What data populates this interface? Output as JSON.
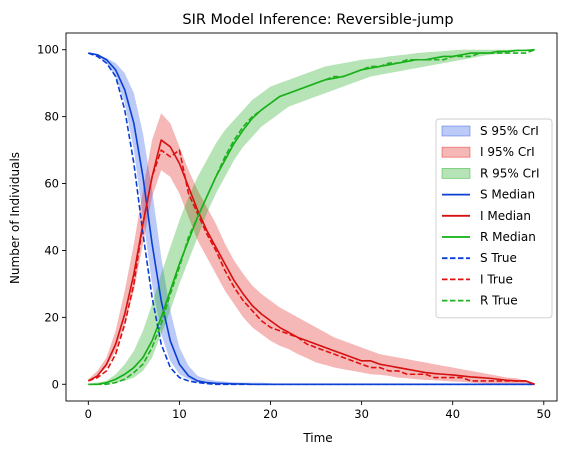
{
  "chart_data": {
    "type": "line",
    "title": "SIR Model Inference: Reversible-jump",
    "xlabel": "Time",
    "ylabel": "Number of Individuals",
    "xlim": [
      -2.45,
      51.45
    ],
    "ylim": [
      -5,
      105
    ],
    "xticks": [
      0,
      10,
      20,
      30,
      40,
      50
    ],
    "yticks": [
      0,
      20,
      40,
      60,
      80,
      100
    ],
    "grid": false,
    "legend_position": "center-right",
    "x": [
      0,
      1,
      2,
      3,
      4,
      5,
      6,
      7,
      8,
      9,
      10,
      11,
      12,
      13,
      14,
      15,
      16,
      17,
      18,
      19,
      20,
      21,
      22,
      23,
      24,
      25,
      26,
      27,
      28,
      29,
      30,
      31,
      32,
      33,
      34,
      35,
      36,
      37,
      38,
      39,
      40,
      41,
      42,
      43,
      44,
      45,
      46,
      47,
      48,
      49
    ],
    "bands": [
      {
        "name": "S 95% CrI",
        "color": "#1f4fe0",
        "lower": [
          99,
          98,
          96,
          92,
          84,
          70,
          50,
          30,
          15,
          7,
          3,
          1.5,
          0.5,
          0.3,
          0.2,
          0,
          0,
          0,
          0,
          0,
          0,
          0,
          0,
          0,
          0,
          0,
          0,
          0,
          0,
          0,
          0,
          0,
          0,
          0,
          0,
          0,
          0,
          0,
          0,
          0,
          0,
          0,
          0,
          0,
          0,
          0,
          0,
          0,
          0,
          0
        ],
        "upper": [
          99,
          98.5,
          97.5,
          96,
          93,
          87,
          75,
          58,
          38,
          22,
          11,
          5.5,
          2.5,
          1.5,
          1,
          0.8,
          0.6,
          0.5,
          0.5,
          0.5,
          0.3,
          0,
          0,
          0,
          0,
          0,
          0,
          0,
          0,
          0,
          0,
          0,
          0,
          0,
          0,
          0,
          0,
          0,
          0,
          0,
          0,
          0,
          0,
          0,
          0,
          0,
          0,
          0,
          0,
          0
        ]
      },
      {
        "name": "I 95% CrI",
        "color": "#e01010",
        "lower": [
          1,
          2.5,
          5,
          10,
          18,
          28,
          42,
          56,
          64,
          62,
          57,
          50,
          43,
          38,
          33,
          28,
          24,
          20,
          17,
          15,
          13,
          11.5,
          10.5,
          9,
          7.8,
          6.5,
          5.8,
          5,
          4.5,
          4,
          3.5,
          3,
          2.8,
          2.5,
          2,
          1.8,
          1.5,
          1.3,
          1.2,
          1,
          0.8,
          0.7,
          0.5,
          0.3,
          0.2,
          0.1,
          0,
          0,
          0,
          0
        ],
        "upper": [
          1.5,
          4,
          8,
          16,
          28,
          42,
          58,
          73,
          81,
          78,
          71,
          64,
          58,
          53,
          48,
          42,
          37,
          33,
          29.5,
          27,
          25,
          23,
          21.5,
          20,
          18.5,
          17,
          15.5,
          14,
          13,
          12,
          11,
          10,
          9,
          8.5,
          8,
          7.5,
          7,
          6.5,
          6,
          5.5,
          5,
          4.5,
          4,
          3.5,
          3,
          2.5,
          2,
          1.8,
          1,
          0.3
        ]
      },
      {
        "name": "R 95% CrI",
        "color": "#10a510",
        "lower": [
          0,
          0,
          0,
          0.5,
          1,
          2,
          4,
          8,
          15,
          22,
          30,
          37,
          44,
          51,
          57,
          62,
          67,
          71,
          74,
          77,
          79,
          81,
          83,
          84,
          85,
          86,
          87,
          88,
          89,
          90,
          91,
          92,
          92.5,
          93,
          93.5,
          94,
          94.5,
          95,
          95.5,
          96,
          96.5,
          97,
          97.5,
          98,
          98.5,
          98.7,
          99,
          99.5,
          99.8,
          100
        ],
        "upper": [
          0.2,
          0.5,
          1,
          3,
          6,
          10,
          16,
          24,
          33,
          41,
          49,
          56,
          62,
          67,
          72,
          76,
          79,
          82,
          85,
          87,
          89,
          90,
          91,
          92,
          93,
          94,
          95,
          95.5,
          96,
          96.5,
          97,
          97.3,
          97.6,
          98,
          98.3,
          98.6,
          99,
          99.2,
          99.4,
          99.6,
          99.8,
          100,
          100,
          100,
          100,
          100,
          100,
          100,
          100,
          100
        ]
      }
    ],
    "series": [
      {
        "name": "S Median",
        "color": "#0a3fd6",
        "style": "solid",
        "values": [
          99,
          98.5,
          97,
          94,
          88,
          78,
          62,
          42,
          25,
          13,
          6,
          2.5,
          1,
          0.5,
          0.3,
          0.2,
          0.1,
          0.1,
          0,
          0,
          0,
          0,
          0,
          0,
          0,
          0,
          0,
          0,
          0,
          0,
          0,
          0,
          0,
          0,
          0,
          0,
          0,
          0,
          0,
          0,
          0,
          0,
          0,
          0,
          0,
          0,
          0,
          0,
          0,
          0
        ]
      },
      {
        "name": "I Median",
        "color": "#d41010",
        "style": "solid",
        "values": [
          1,
          2.5,
          6,
          12,
          21,
          33,
          48,
          62,
          73,
          71,
          66,
          59,
          52,
          46,
          41,
          36,
          31,
          27,
          23.5,
          21,
          19,
          17,
          15.5,
          14,
          13,
          12,
          11,
          10,
          9,
          8,
          7,
          7,
          6,
          5.5,
          5,
          4.5,
          4,
          3.5,
          3.2,
          3,
          2.8,
          2.5,
          2.2,
          2,
          1.8,
          1.5,
          1.2,
          1,
          1,
          0
        ]
      },
      {
        "name": "R Median",
        "color": "#10b010",
        "style": "solid",
        "values": [
          0,
          0,
          0.5,
          1.5,
          3,
          5,
          8,
          13,
          20,
          28,
          36,
          43,
          50,
          56,
          62,
          67,
          72,
          76,
          79.5,
          82,
          84,
          86,
          87,
          88,
          89,
          90,
          91,
          91.5,
          92,
          93,
          94,
          94.5,
          95,
          95.5,
          96,
          96.5,
          97,
          97,
          97.5,
          98,
          98,
          98.5,
          99,
          99,
          99,
          99.5,
          99.5,
          99.8,
          99.8,
          100
        ]
      },
      {
        "name": "S True",
        "color": "#0a3fd6",
        "style": "dashed",
        "values": [
          99,
          98,
          96,
          92,
          82,
          66,
          45,
          26,
          12,
          5,
          2,
          1,
          0.5,
          0.2,
          0,
          0,
          0,
          0,
          0,
          0,
          0,
          0,
          0,
          0,
          0,
          0,
          0,
          0,
          0,
          0,
          0,
          0,
          0,
          0,
          0,
          0,
          0,
          0,
          0,
          0,
          0,
          0,
          0,
          0,
          0,
          0,
          0,
          0,
          0,
          0
        ]
      },
      {
        "name": "I True",
        "color": "#e01010",
        "style": "dashed",
        "values": [
          1,
          2,
          4,
          9,
          18,
          30,
          48,
          62,
          70,
          68,
          70,
          57,
          51,
          45,
          40,
          34,
          29,
          25,
          22,
          19,
          17,
          16,
          15,
          14,
          12,
          11,
          10,
          9,
          8,
          7,
          6,
          5,
          5,
          4,
          4,
          3,
          3,
          3,
          2,
          2,
          2,
          2,
          1,
          1,
          1,
          1,
          1,
          1,
          1,
          0
        ]
      },
      {
        "name": "R True",
        "color": "#20b020",
        "style": "dashed",
        "values": [
          0,
          0,
          0,
          0.5,
          1.5,
          3.5,
          6,
          11,
          18,
          27,
          35,
          44,
          50,
          56,
          62,
          68,
          73,
          77,
          80,
          82,
          84,
          86,
          87,
          88,
          89,
          90,
          91,
          92,
          92,
          93,
          94,
          95,
          95,
          96,
          96,
          97,
          97,
          97,
          97,
          97,
          98,
          98,
          98,
          99,
          99,
          99,
          99,
          99,
          99,
          100
        ]
      }
    ]
  }
}
